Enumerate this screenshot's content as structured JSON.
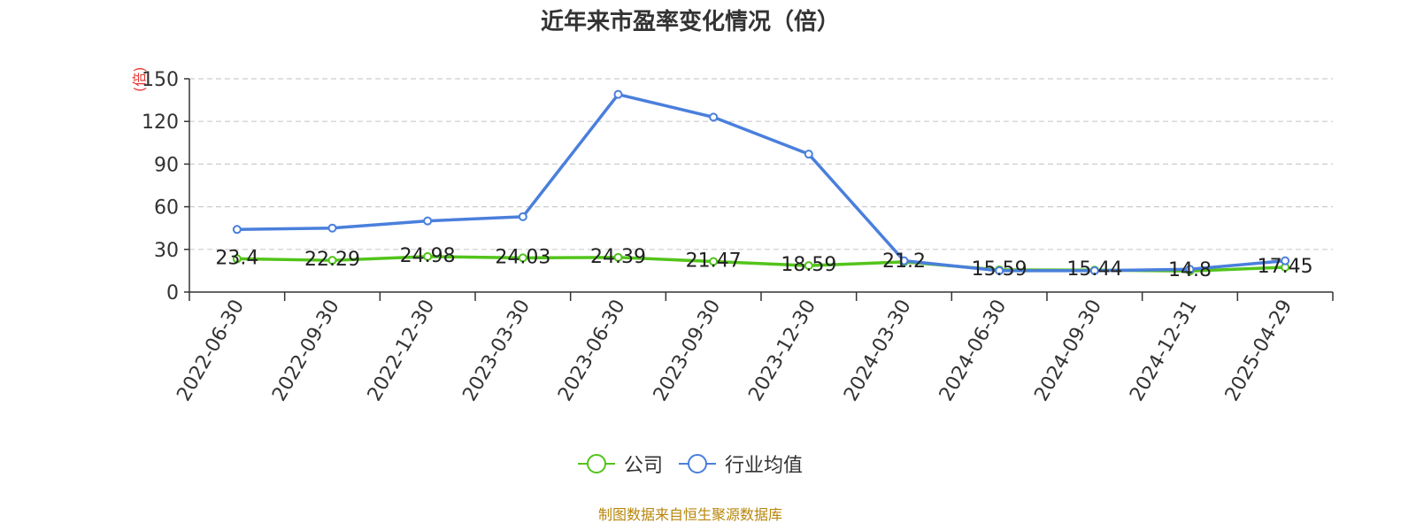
{
  "chart_data": {
    "type": "line",
    "title": "近年来市盈率变化情况（倍）",
    "ylabel": "(倍)",
    "ylim": [
      0,
      150
    ],
    "yticks": [
      0,
      30,
      60,
      90,
      120,
      150
    ],
    "grid": true,
    "legend_position": "bottom",
    "categories": [
      "2022-06-30",
      "2022-09-30",
      "2022-12-30",
      "2023-03-30",
      "2023-06-30",
      "2023-09-30",
      "2023-12-30",
      "2024-03-30",
      "2024-06-30",
      "2024-09-30",
      "2024-12-31",
      "2025-04-29"
    ],
    "series": [
      {
        "name": "公司",
        "color": "#52c41a",
        "labeled": true,
        "values": [
          23.4,
          22.29,
          24.98,
          24.03,
          24.39,
          21.47,
          18.59,
          21.2,
          15.59,
          15.44,
          14.8,
          17.45
        ]
      },
      {
        "name": "行业均值",
        "color": "#4a7fdc",
        "labeled": false,
        "values": [
          44,
          45,
          50,
          53,
          139,
          123,
          97,
          22,
          15,
          15,
          16,
          22
        ]
      }
    ]
  },
  "source": "制图数据来自恒生聚源数据库"
}
